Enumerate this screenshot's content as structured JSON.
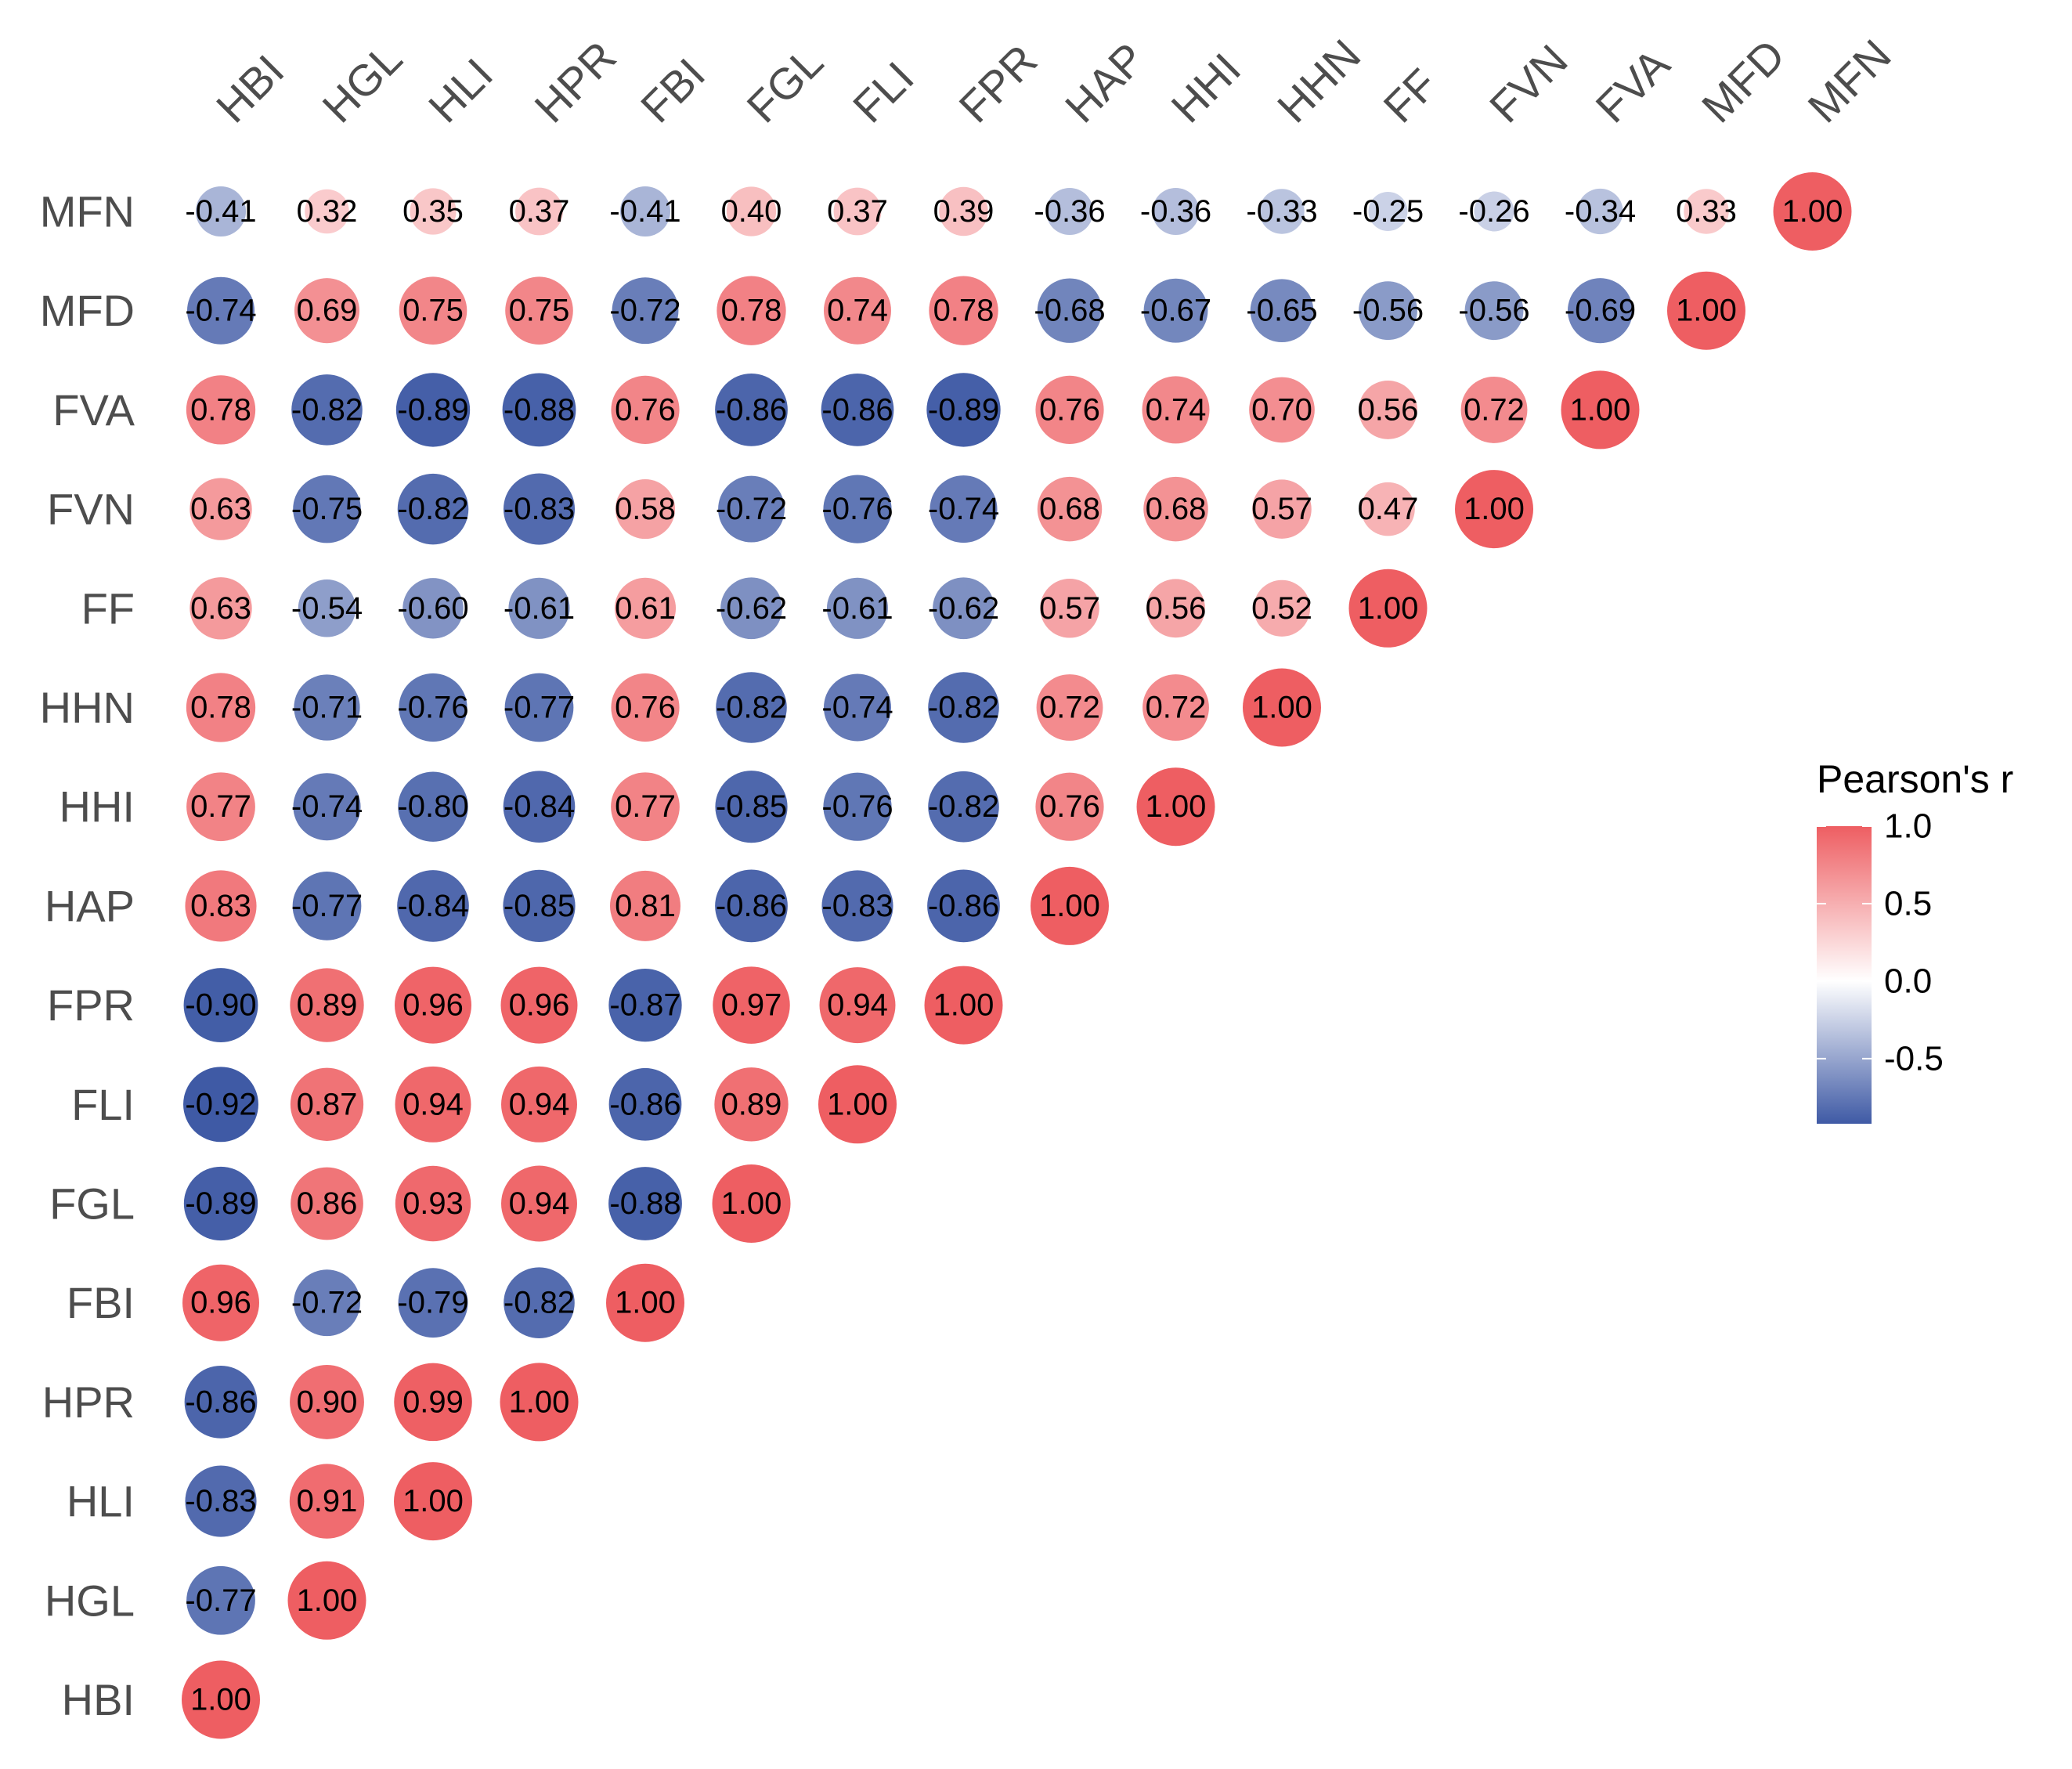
{
  "chart_data": {
    "type": "heatmap",
    "subtype": "correlation-circles-lower-triangle",
    "variables": [
      "HBI",
      "HGL",
      "HLI",
      "HPR",
      "FBI",
      "FGL",
      "FLI",
      "FPR",
      "HAP",
      "HHI",
      "HHN",
      "FF",
      "FVN",
      "FVA",
      "MFD",
      "MFN"
    ],
    "rows_top_to_bottom": [
      "MFN",
      "MFD",
      "FVA",
      "FVN",
      "FF",
      "HHN",
      "HHI",
      "HAP",
      "FPR",
      "FLI",
      "FGL",
      "FBI",
      "HPR",
      "HLI",
      "HGL",
      "HBI"
    ],
    "values": [
      [
        "-0.41",
        "0.32",
        "0.35",
        "0.37",
        "-0.41",
        "0.40",
        "0.37",
        "0.39",
        "-0.36",
        "-0.36",
        "-0.33",
        "-0.25",
        "-0.26",
        "-0.34",
        "0.33",
        "1.00"
      ],
      [
        "-0.74",
        "0.69",
        "0.75",
        "0.75",
        "-0.72",
        "0.78",
        "0.74",
        "0.78",
        "-0.68",
        "-0.67",
        "-0.65",
        "-0.56",
        "-0.56",
        "-0.69",
        "1.00"
      ],
      [
        "0.78",
        "-0.82",
        "-0.89",
        "-0.88",
        "0.76",
        "-0.86",
        "-0.86",
        "-0.89",
        "0.76",
        "0.74",
        "0.70",
        "0.56",
        "0.72",
        "1.00"
      ],
      [
        "0.63",
        "-0.75",
        "-0.82",
        "-0.83",
        "0.58",
        "-0.72",
        "-0.76",
        "-0.74",
        "0.68",
        "0.68",
        "0.57",
        "0.47",
        "1.00"
      ],
      [
        "0.63",
        "-0.54",
        "-0.60",
        "-0.61",
        "0.61",
        "-0.62",
        "-0.61",
        "-0.62",
        "0.57",
        "0.56",
        "0.52",
        "1.00"
      ],
      [
        "0.78",
        "-0.71",
        "-0.76",
        "-0.77",
        "0.76",
        "-0.82",
        "-0.74",
        "-0.82",
        "0.72",
        "0.72",
        "1.00"
      ],
      [
        "0.77",
        "-0.74",
        "-0.80",
        "-0.84",
        "0.77",
        "-0.85",
        "-0.76",
        "-0.82",
        "0.76",
        "1.00"
      ],
      [
        "0.83",
        "-0.77",
        "-0.84",
        "-0.85",
        "0.81",
        "-0.86",
        "-0.83",
        "-0.86",
        "1.00"
      ],
      [
        "-0.90",
        "0.89",
        "0.96",
        "0.96",
        "-0.87",
        "0.97",
        "0.94",
        "1.00"
      ],
      [
        "-0.92",
        "0.87",
        "0.94",
        "0.94",
        "-0.86",
        "0.89",
        "1.00"
      ],
      [
        "-0.89",
        "0.86",
        "0.93",
        "0.94",
        "-0.88",
        "1.00"
      ],
      [
        "0.96",
        "-0.72",
        "-0.79",
        "-0.82",
        "1.00"
      ],
      [
        "-0.86",
        "0.90",
        "0.99",
        "1.00"
      ],
      [
        "-0.83",
        "0.91",
        "1.00"
      ],
      [
        "-0.77",
        "1.00"
      ],
      [
        "1.00"
      ]
    ],
    "color_scale": {
      "low": "#3F5AA5",
      "mid": "#FFFFFF",
      "high": "#EE5E62",
      "domain": [
        -0.92,
        0,
        1.0
      ]
    },
    "size_encodes": "absolute value of r",
    "legend": {
      "title": "Pearson's r",
      "ticks": [
        "1.0",
        "0.5",
        "0.0",
        "-0.5"
      ],
      "tick_values": [
        1.0,
        0.5,
        0.0,
        -0.5
      ],
      "range": [
        -0.92,
        1.0
      ],
      "position": "right"
    },
    "grid": false
  }
}
